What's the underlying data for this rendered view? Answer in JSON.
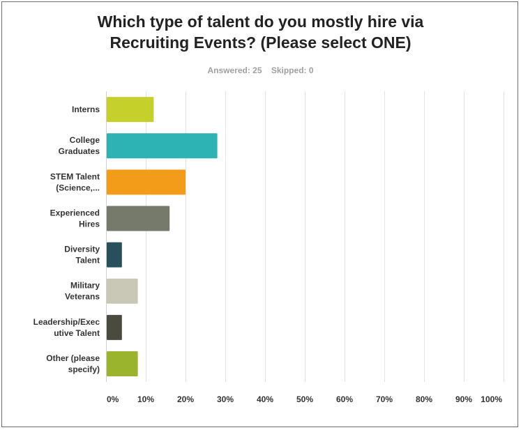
{
  "chart_data": {
    "type": "bar",
    "orientation": "horizontal",
    "title_lines": [
      "Which type of talent do you mostly hire via",
      "Recruiting Events? (Please select ONE)"
    ],
    "answered_label": "Answered: 25",
    "skipped_label": "Skipped: 0",
    "categories": [
      [
        "Interns"
      ],
      [
        "College",
        "Graduates"
      ],
      [
        "STEM Talent",
        "(Science,..."
      ],
      [
        "Experienced",
        "Hires"
      ],
      [
        "Diversity",
        "Talent"
      ],
      [
        "Military",
        "Veterans"
      ],
      [
        "Leadership/Exec",
        "utive Talent"
      ],
      [
        "Other (please",
        "specify)"
      ]
    ],
    "values": [
      12,
      28,
      20,
      16,
      4,
      8,
      4,
      8
    ],
    "colors": [
      "#c5d02a",
      "#2db3b3",
      "#f39c1a",
      "#767a6a",
      "#27505c",
      "#c9c7b6",
      "#4a4a3e",
      "#9ab52d"
    ],
    "xlim": [
      0,
      100
    ],
    "x_ticks": [
      "0%",
      "10%",
      "20%",
      "30%",
      "40%",
      "50%",
      "60%",
      "70%",
      "80%",
      "90%",
      "100%"
    ],
    "grid": true
  }
}
